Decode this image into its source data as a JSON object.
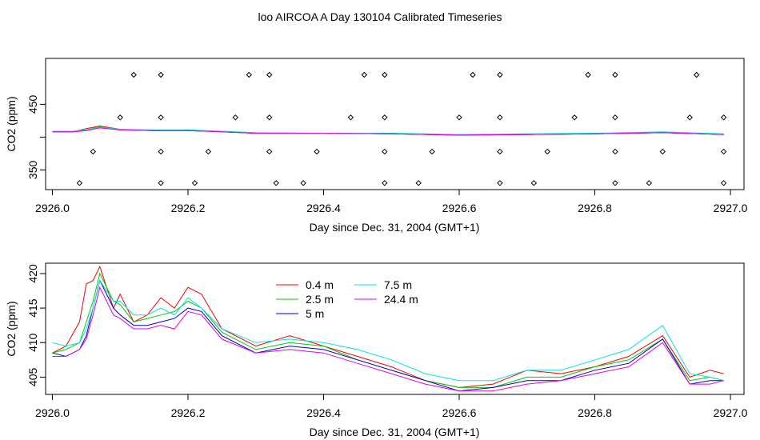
{
  "title": "loo AIRCOA A  Day 130104  Calibrated Timeseries",
  "colors": {
    "series": [
      "#ff0000",
      "#00cc00",
      "#0000cc",
      "#00e5e5",
      "#e600e6"
    ],
    "markers": "#000000",
    "axes": "#000000"
  },
  "chart_data": [
    {
      "type": "line",
      "title": "",
      "xlabel": "Day since Dec. 31, 2004 (GMT+1)",
      "ylabel": "CO2 (ppm)",
      "xlim": [
        2925.99,
        2927.02
      ],
      "ylim": [
        320,
        520
      ],
      "xticks": [
        2926.0,
        2926.2,
        2926.4,
        2926.6,
        2926.8,
        2927.0
      ],
      "xtick_labels": [
        "2926.0",
        "2926.2",
        "2926.4",
        "2926.6",
        "2926.8",
        "2927.0"
      ],
      "yticks": [
        350,
        400,
        450
      ],
      "ytick_labels": [
        "350",
        "",
        "450"
      ],
      "grid": false,
      "series": [
        {
          "x": [
            2926.0,
            2926.03,
            2926.05,
            2926.07,
            2926.1,
            2926.15,
            2926.2,
            2926.25,
            2926.3,
            2926.4,
            2926.5,
            2926.6,
            2926.7,
            2926.8,
            2926.9,
            2926.99
          ],
          "values": [
            408,
            408,
            413,
            417,
            412,
            410,
            411,
            408,
            406,
            406,
            405,
            403,
            404,
            405,
            407,
            404
          ]
        },
        {
          "x": [
            2926.0,
            2926.03,
            2926.05,
            2926.07,
            2926.1,
            2926.15,
            2926.2,
            2926.25,
            2926.3,
            2926.4,
            2926.5,
            2926.6,
            2926.7,
            2926.8,
            2926.9,
            2926.99
          ],
          "values": [
            408,
            408,
            411,
            416,
            411,
            410,
            411,
            408,
            406,
            406,
            405,
            403,
            404,
            405,
            407,
            404
          ]
        },
        {
          "x": [
            2926.0,
            2926.03,
            2926.05,
            2926.07,
            2926.1,
            2926.15,
            2926.2,
            2926.25,
            2926.3,
            2926.4,
            2926.5,
            2926.6,
            2926.7,
            2926.8,
            2926.9,
            2926.99
          ],
          "values": [
            408,
            408,
            410,
            415,
            411,
            410,
            410,
            408,
            406,
            406,
            405,
            403,
            404,
            405,
            407,
            404
          ]
        },
        {
          "x": [
            2926.0,
            2926.03,
            2926.05,
            2926.07,
            2926.1,
            2926.15,
            2926.2,
            2926.25,
            2926.3,
            2926.4,
            2926.5,
            2926.6,
            2926.7,
            2926.8,
            2926.9,
            2926.99
          ],
          "values": [
            409,
            409,
            411,
            415,
            412,
            411,
            411,
            409,
            407,
            406,
            406,
            404,
            405,
            406,
            408,
            405
          ]
        },
        {
          "x": [
            2926.0,
            2926.03,
            2926.05,
            2926.07,
            2926.1,
            2926.15,
            2926.2,
            2926.25,
            2926.3,
            2926.4,
            2926.5,
            2926.6,
            2926.7,
            2926.8,
            2926.9,
            2926.99
          ],
          "values": [
            408,
            408,
            410,
            414,
            411,
            410,
            410,
            408,
            406,
            406,
            405,
            403,
            404,
            405,
            407,
            404
          ]
        }
      ],
      "markers": [
        {
          "x": 2926.12,
          "y": 495
        },
        {
          "x": 2926.16,
          "y": 495
        },
        {
          "x": 2926.29,
          "y": 495
        },
        {
          "x": 2926.32,
          "y": 495
        },
        {
          "x": 2926.46,
          "y": 495
        },
        {
          "x": 2926.49,
          "y": 495
        },
        {
          "x": 2926.62,
          "y": 495
        },
        {
          "x": 2926.66,
          "y": 495
        },
        {
          "x": 2926.79,
          "y": 495
        },
        {
          "x": 2926.83,
          "y": 495
        },
        {
          "x": 2926.95,
          "y": 495
        },
        {
          "x": 2926.1,
          "y": 430
        },
        {
          "x": 2926.16,
          "y": 430
        },
        {
          "x": 2926.27,
          "y": 430
        },
        {
          "x": 2926.32,
          "y": 430
        },
        {
          "x": 2926.44,
          "y": 430
        },
        {
          "x": 2926.49,
          "y": 430
        },
        {
          "x": 2926.6,
          "y": 430
        },
        {
          "x": 2926.66,
          "y": 430
        },
        {
          "x": 2926.77,
          "y": 430
        },
        {
          "x": 2926.83,
          "y": 430
        },
        {
          "x": 2926.94,
          "y": 430
        },
        {
          "x": 2926.99,
          "y": 430
        },
        {
          "x": 2926.06,
          "y": 378
        },
        {
          "x": 2926.16,
          "y": 378
        },
        {
          "x": 2926.23,
          "y": 378
        },
        {
          "x": 2926.32,
          "y": 378
        },
        {
          "x": 2926.39,
          "y": 378
        },
        {
          "x": 2926.49,
          "y": 378
        },
        {
          "x": 2926.56,
          "y": 378
        },
        {
          "x": 2926.66,
          "y": 378
        },
        {
          "x": 2926.73,
          "y": 378
        },
        {
          "x": 2926.83,
          "y": 378
        },
        {
          "x": 2926.9,
          "y": 378
        },
        {
          "x": 2926.99,
          "y": 378
        },
        {
          "x": 2926.04,
          "y": 330
        },
        {
          "x": 2926.16,
          "y": 330
        },
        {
          "x": 2926.21,
          "y": 330
        },
        {
          "x": 2926.33,
          "y": 330
        },
        {
          "x": 2926.37,
          "y": 330
        },
        {
          "x": 2926.49,
          "y": 330
        },
        {
          "x": 2926.54,
          "y": 330
        },
        {
          "x": 2926.66,
          "y": 330
        },
        {
          "x": 2926.71,
          "y": 330
        },
        {
          "x": 2926.83,
          "y": 330
        },
        {
          "x": 2926.88,
          "y": 330
        },
        {
          "x": 2926.99,
          "y": 330
        }
      ]
    },
    {
      "type": "line",
      "title": "",
      "xlabel": "Day since Dec. 31, 2004 (GMT+1)",
      "ylabel": "CO2 (ppm)",
      "xlim": [
        2925.99,
        2927.02
      ],
      "ylim": [
        402.5,
        421.5
      ],
      "xticks": [
        2926.0,
        2926.2,
        2926.4,
        2926.6,
        2926.8,
        2927.0
      ],
      "xtick_labels": [
        "2926.0",
        "2926.2",
        "2926.4",
        "2926.6",
        "2926.8",
        "2927.0"
      ],
      "yticks": [
        405,
        410,
        415,
        420
      ],
      "ytick_labels": [
        "405",
        "410",
        "415",
        "420"
      ],
      "grid": false,
      "legend": {
        "position": "top-center",
        "columns": 2
      },
      "series": [
        {
          "name": "0.4 m",
          "x": [
            2926.0,
            2926.02,
            2926.04,
            2926.05,
            2926.06,
            2926.07,
            2926.09,
            2926.1,
            2926.12,
            2926.14,
            2926.16,
            2926.18,
            2926.2,
            2926.22,
            2926.25,
            2926.3,
            2926.35,
            2926.4,
            2926.45,
            2926.5,
            2926.55,
            2926.6,
            2926.65,
            2926.7,
            2926.75,
            2926.8,
            2926.85,
            2926.9,
            2926.94,
            2926.97,
            2926.99
          ],
          "values": [
            408.5,
            409.5,
            413,
            418.5,
            419,
            421,
            415,
            417,
            413,
            414,
            416.5,
            415,
            418,
            417,
            412,
            409.5,
            411,
            409.5,
            408,
            406.5,
            404.5,
            403.5,
            404,
            406,
            405.5,
            406.5,
            408,
            411,
            405,
            406,
            405.5
          ]
        },
        {
          "name": "2.5 m",
          "x": [
            2926.0,
            2926.02,
            2926.04,
            2926.05,
            2926.06,
            2926.07,
            2926.09,
            2926.1,
            2926.12,
            2926.14,
            2926.16,
            2926.18,
            2926.2,
            2926.22,
            2926.25,
            2926.3,
            2926.35,
            2926.4,
            2926.45,
            2926.5,
            2926.55,
            2926.6,
            2926.65,
            2926.7,
            2926.75,
            2926.8,
            2926.85,
            2926.9,
            2926.94,
            2926.97,
            2926.99
          ],
          "values": [
            408.5,
            409,
            410,
            413,
            416,
            420,
            416,
            415.5,
            413,
            413.5,
            414,
            414.5,
            416,
            415,
            411.5,
            409,
            410,
            409.5,
            407.5,
            406,
            404.5,
            403.5,
            403.5,
            405,
            405,
            406.5,
            407.5,
            410.5,
            404.5,
            405,
            404.5
          ]
        },
        {
          "name": "5 m",
          "x": [
            2926.0,
            2926.02,
            2926.04,
            2926.05,
            2926.06,
            2926.07,
            2926.09,
            2926.1,
            2926.12,
            2926.14,
            2926.16,
            2926.18,
            2926.2,
            2926.22,
            2926.25,
            2926.3,
            2926.35,
            2926.4,
            2926.45,
            2926.5,
            2926.55,
            2926.6,
            2926.65,
            2926.7,
            2926.75,
            2926.8,
            2926.85,
            2926.9,
            2926.94,
            2926.97,
            2926.99
          ],
          "values": [
            408.5,
            408,
            409,
            411,
            415,
            419,
            415,
            414,
            412.5,
            412.5,
            413,
            413.5,
            415,
            414.5,
            411,
            408.5,
            409.5,
            409,
            407.5,
            406,
            404.5,
            403,
            403.5,
            404.5,
            404.5,
            406,
            407,
            410.5,
            404,
            404.5,
            404.5
          ]
        },
        {
          "name": "7.5 m",
          "x": [
            2926.0,
            2926.02,
            2926.04,
            2926.05,
            2926.06,
            2926.07,
            2926.09,
            2926.1,
            2926.12,
            2926.14,
            2926.16,
            2926.18,
            2926.2,
            2926.22,
            2926.25,
            2926.3,
            2926.35,
            2926.4,
            2926.45,
            2926.5,
            2926.55,
            2926.6,
            2926.65,
            2926.7,
            2926.75,
            2926.8,
            2926.85,
            2926.9,
            2926.94,
            2926.97,
            2926.99
          ],
          "values": [
            410,
            409.5,
            410,
            412,
            415,
            419,
            416,
            416,
            414,
            414,
            415,
            414,
            416.5,
            415,
            412,
            410,
            410.5,
            410,
            409,
            407.5,
            405.5,
            404.5,
            404.5,
            406,
            406,
            407.5,
            409,
            412.5,
            405.5,
            405,
            404.5
          ]
        },
        {
          "name": "24.4 m",
          "x": [
            2926.0,
            2926.02,
            2926.04,
            2926.05,
            2926.06,
            2926.07,
            2926.09,
            2926.1,
            2926.12,
            2926.14,
            2926.16,
            2926.18,
            2926.2,
            2926.22,
            2926.25,
            2926.3,
            2926.35,
            2926.4,
            2926.45,
            2926.5,
            2926.55,
            2926.6,
            2926.65,
            2926.7,
            2926.75,
            2926.8,
            2926.85,
            2926.9,
            2926.94,
            2926.97,
            2926.99
          ],
          "values": [
            408,
            408,
            409,
            410.5,
            414,
            418,
            414,
            413.5,
            412,
            412,
            412.5,
            412,
            414.5,
            414,
            410.5,
            408.5,
            409,
            408.5,
            407,
            405.5,
            404,
            403,
            403,
            404,
            404.5,
            405.5,
            406.5,
            410,
            404,
            404,
            404.5
          ]
        }
      ]
    }
  ]
}
